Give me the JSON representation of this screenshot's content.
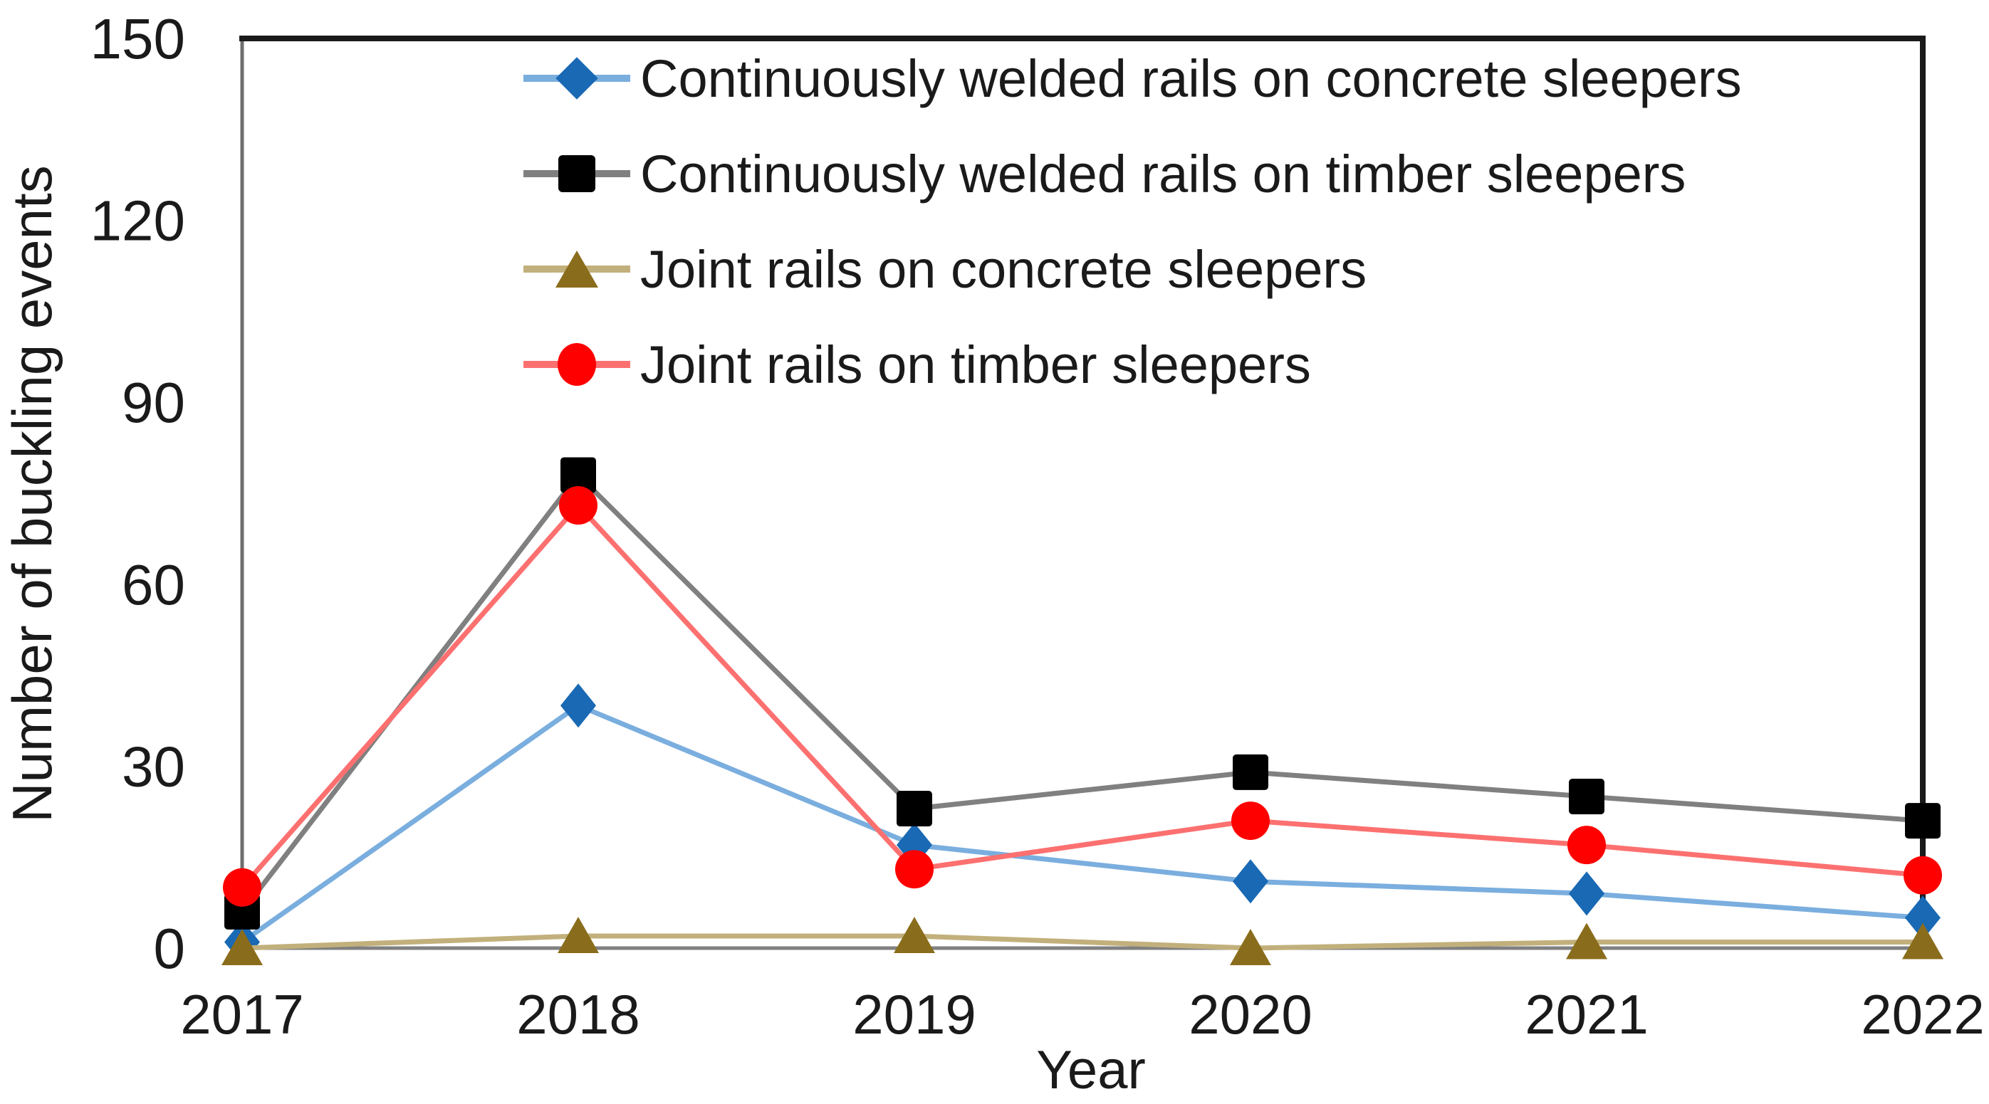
{
  "chart_data": {
    "type": "line",
    "title": "",
    "xlabel": "Year",
    "ylabel": "Number of buckling events",
    "categories": [
      "2017",
      "2018",
      "2019",
      "2020",
      "2021",
      "2022"
    ],
    "ylim": [
      0,
      150
    ],
    "yticks": [
      0,
      30,
      60,
      90,
      120,
      150
    ],
    "grid": false,
    "legend_position": "top-left-inside",
    "text_color": "#1a1a1a",
    "axis_colors": {
      "top": "#1a1a1a",
      "right": "#1a1a1a",
      "left": "#6e6e6e",
      "bottom": "#808080"
    },
    "series": [
      {
        "name": "Continuously welded rails on concrete sleepers",
        "marker": "diamond",
        "marker_color": "#1969b4",
        "line_color": "#7aaede",
        "values": [
          1,
          40,
          17,
          11,
          9,
          5
        ]
      },
      {
        "name": "Continuously welded rails on timber sleepers",
        "marker": "square",
        "marker_color": "#000000",
        "line_color": "#808080",
        "values": [
          6,
          78,
          23,
          29,
          25,
          21
        ]
      },
      {
        "name": "Joint rails on concrete sleepers",
        "marker": "triangle",
        "marker_color": "#8a6d1c",
        "line_color": "#c2b07c",
        "values": [
          0,
          2,
          2,
          0,
          1,
          1
        ]
      },
      {
        "name": "Joint rails on timber sleepers",
        "marker": "circle",
        "marker_color": "#fe0000",
        "line_color": "#fc7070",
        "values": [
          10,
          73,
          13,
          21,
          17,
          12
        ]
      }
    ]
  }
}
